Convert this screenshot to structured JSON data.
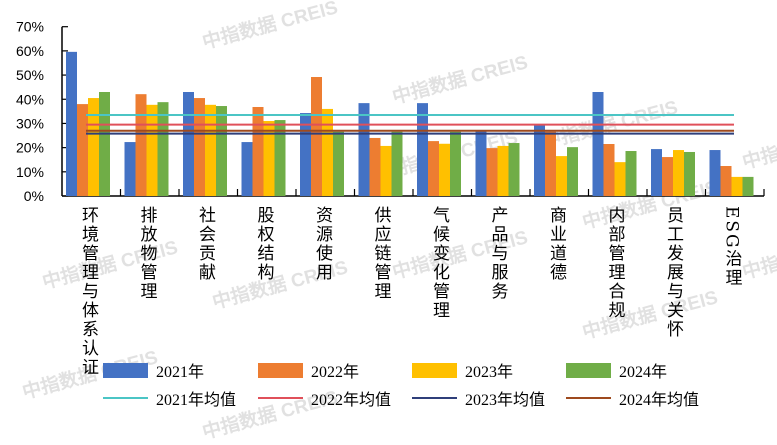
{
  "chart_data": {
    "type": "bar",
    "title": "",
    "xlabel": "",
    "ylabel": "",
    "ylim": [
      0,
      70
    ],
    "y_ticks": [
      "0%",
      "10%",
      "20%",
      "30%",
      "40%",
      "50%",
      "60%",
      "70%"
    ],
    "grid": false,
    "legend_placement": "bottom",
    "categories": [
      "环境管理与体系认证",
      "排放物管理",
      "社会贡献",
      "股权结构",
      "资源使用",
      "供应链管理",
      "气候变化管理",
      "产品与服务",
      "商业道德",
      "内部管理合规",
      "员工发展与关怀",
      "ESG治理"
    ],
    "series": [
      {
        "name": "2021年",
        "color": "#4472C4",
        "values": [
          59.6,
          22.3,
          43.0,
          22.3,
          34.3,
          38.4,
          38.4,
          27.0,
          29.3,
          43.0,
          19.4,
          19.0
        ]
      },
      {
        "name": "2022年",
        "color": "#ED7D31",
        "values": [
          38.0,
          42.1,
          40.5,
          36.8,
          49.2,
          24.0,
          22.7,
          19.8,
          26.6,
          21.5,
          16.1,
          12.4
        ]
      },
      {
        "name": "2023年",
        "color": "#FFC000",
        "values": [
          40.5,
          37.7,
          37.7,
          31.0,
          36.0,
          20.7,
          21.6,
          20.7,
          16.5,
          14.0,
          19.0,
          7.9
        ]
      },
      {
        "name": "2024年",
        "color": "#70AD47",
        "values": [
          43.0,
          38.8,
          37.2,
          31.4,
          26.6,
          26.6,
          26.6,
          21.9,
          20.2,
          18.6,
          18.2,
          7.9
        ]
      }
    ],
    "reference_lines": [
      {
        "name": "2021年均值",
        "color": "#4BC5C5",
        "value": 33.5
      },
      {
        "name": "2022年均值",
        "color": "#E0505A",
        "value": 29.5
      },
      {
        "name": "2023年均值",
        "color": "#2F3F7A",
        "value": 25.8
      },
      {
        "name": "2024年均值",
        "color": "#9E4A1E",
        "value": 27.0
      }
    ]
  },
  "watermark": "中指数据 CREIS"
}
